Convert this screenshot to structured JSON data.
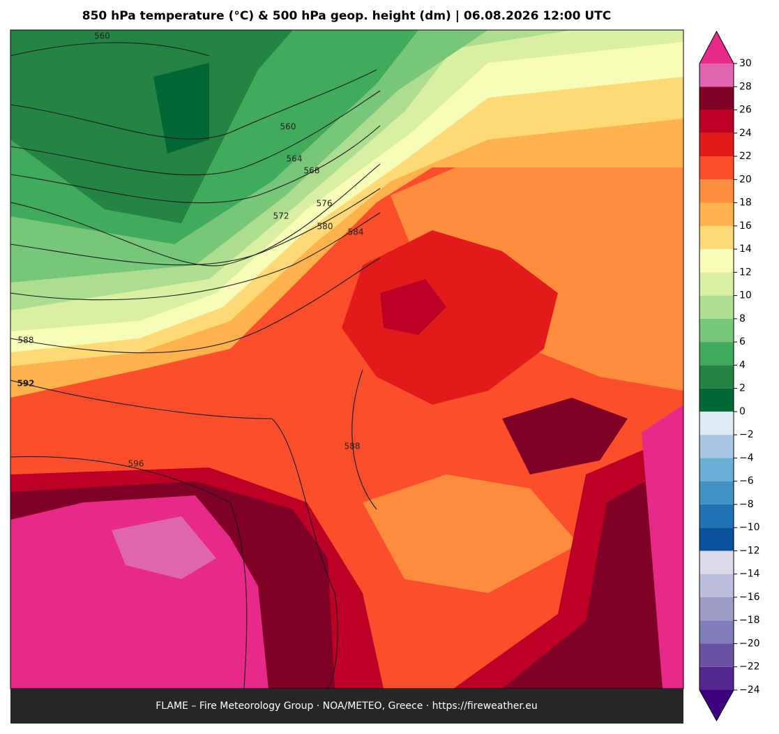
{
  "title": "850 hPa temperature (°C) & 500 hPa geop. height (dm)  |  06.08.2026 12:00 UTC",
  "footer": "FLAME – Fire Meteorology Group · NOA/METEO, Greece · https://fireweather.eu",
  "contour_labels": [
    560,
    560,
    564,
    568,
    572,
    576,
    580,
    584,
    588,
    588,
    592,
    596
  ],
  "colorbar": {
    "ticks": [
      {
        "value": -24,
        "label": "−24"
      },
      {
        "value": -22,
        "label": "−22"
      },
      {
        "value": -20,
        "label": "−20"
      },
      {
        "value": -18,
        "label": "−18"
      },
      {
        "value": -16,
        "label": "−16"
      },
      {
        "value": -14,
        "label": "−14"
      },
      {
        "value": -12,
        "label": "−12"
      },
      {
        "value": -10,
        "label": "−10"
      },
      {
        "value": -8,
        "label": "−8"
      },
      {
        "value": -6,
        "label": "−6"
      },
      {
        "value": -4,
        "label": "−4"
      },
      {
        "value": -2,
        "label": "−2"
      },
      0,
      2,
      4,
      6,
      8,
      10,
      12,
      14,
      16,
      18,
      20,
      22,
      24,
      26,
      28,
      30
    ],
    "colors": [
      "#54278f",
      "#6a51a3",
      "#807dba",
      "#9e9ac8",
      "#bcbddc",
      "#dadaeb",
      "#08519c",
      "#2171b5",
      "#4292c6",
      "#6baed6",
      "#a6c8e4",
      "#deebf7",
      "#006837",
      "#238443",
      "#41ab5d",
      "#78c679",
      "#addd8e",
      "#d9f0a3",
      "#f7fcb9",
      "#fed976",
      "#feb24c",
      "#fd8d3c",
      "#fc4e2a",
      "#e31a1c",
      "#bd0026",
      "#800026",
      "#df65b0"
    ],
    "under_color": "#3f007d",
    "over_color": "#e7298a"
  }
}
